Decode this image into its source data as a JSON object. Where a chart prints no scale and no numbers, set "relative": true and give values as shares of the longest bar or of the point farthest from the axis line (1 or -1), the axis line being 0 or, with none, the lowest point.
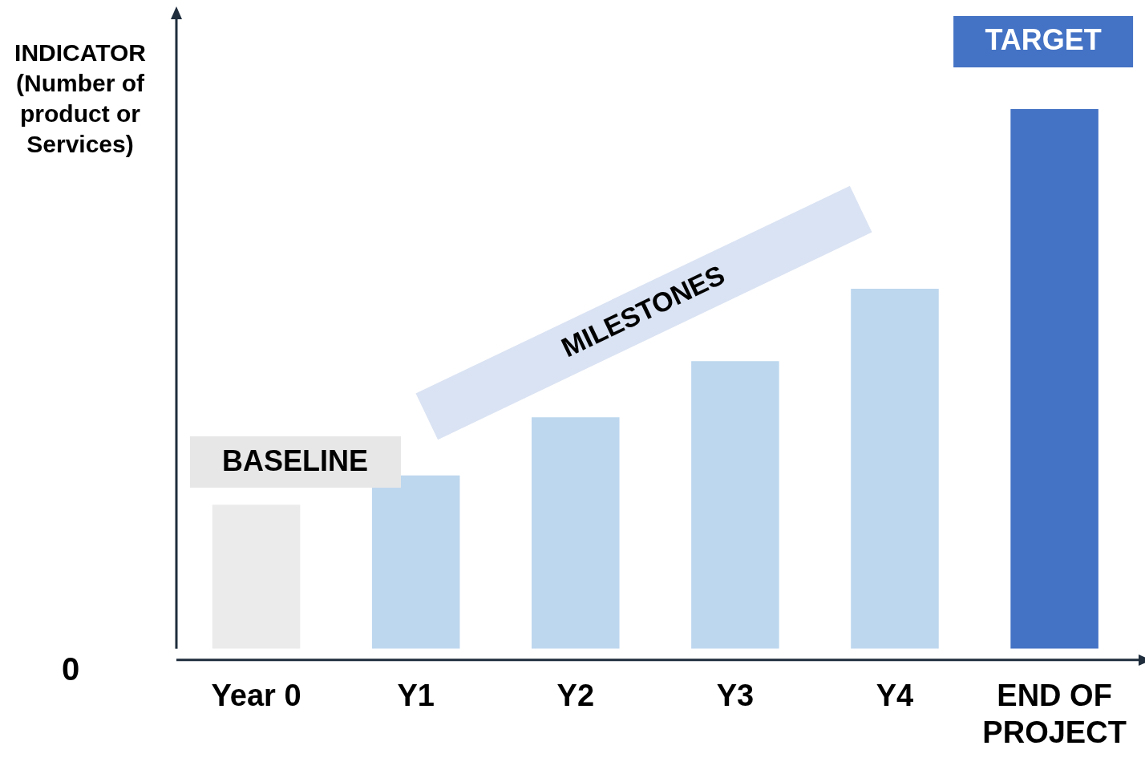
{
  "chart_data": {
    "type": "bar",
    "relative": true,
    "ylabel": "INDICATOR (Number of product or Services)",
    "categories": [
      "Year 0",
      "Y1",
      "Y2",
      "Y3",
      "Y4",
      "END OF PROJECT"
    ],
    "values": [
      0.267,
      0.321,
      0.429,
      0.533,
      0.667,
      1
    ],
    "colors": [
      "#ebebeb",
      "#bdd7ee",
      "#bdd7ee",
      "#bdd7ee",
      "#bdd7ee",
      "#4472c4"
    ],
    "annotations": [
      "BASELINE",
      "MILESTONES",
      "TARGET",
      "0"
    ],
    "legend": false,
    "grid": false
  }
}
